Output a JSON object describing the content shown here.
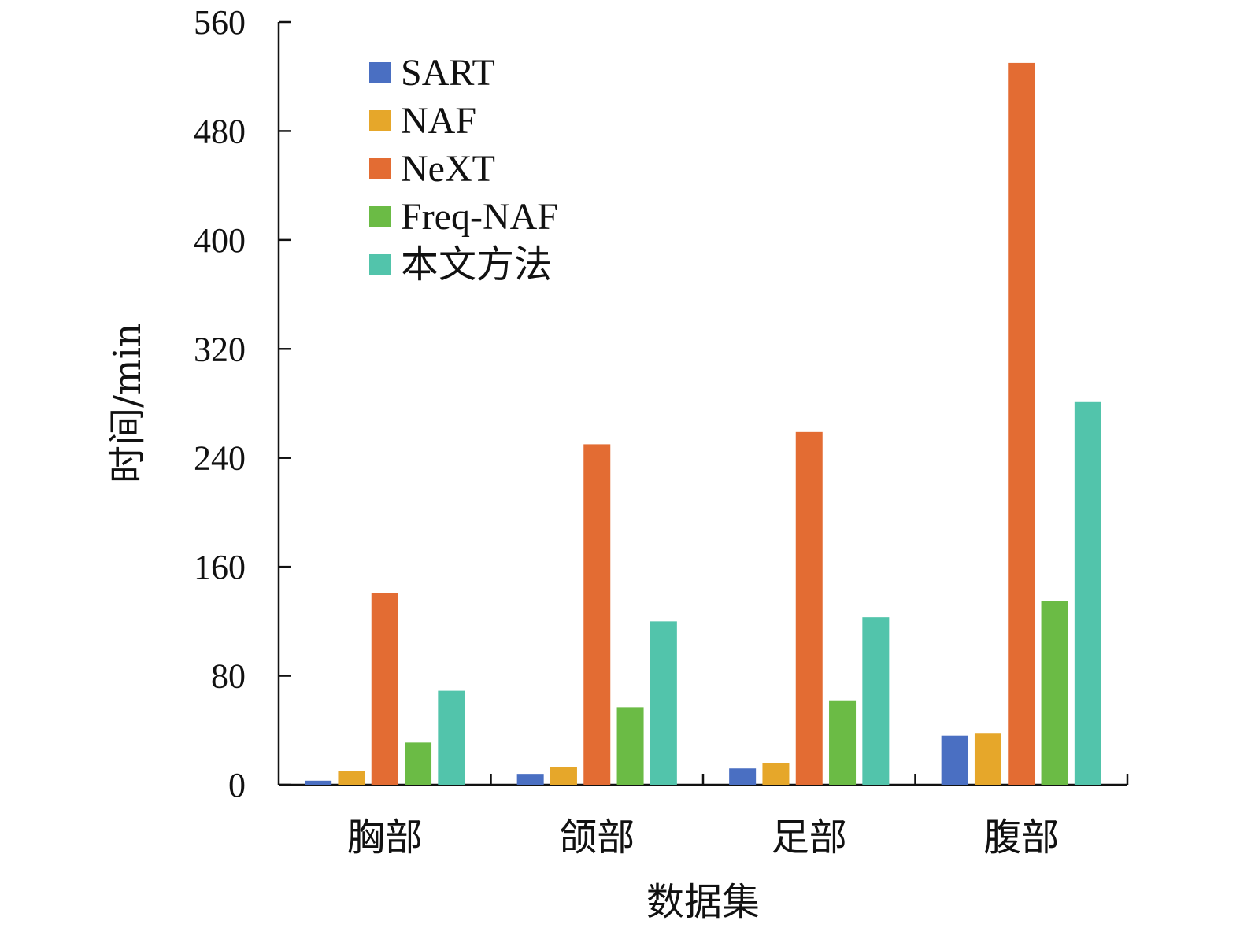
{
  "chart_data": {
    "type": "bar",
    "categories": [
      "胸部",
      "颌部",
      "足部",
      "腹部"
    ],
    "series": [
      {
        "name": "SART",
        "color": "#4a6fc2",
        "values": [
          3,
          8,
          12,
          36
        ]
      },
      {
        "name": "NAF",
        "color": "#e6a72a",
        "values": [
          10,
          13,
          16,
          38
        ]
      },
      {
        "name": "NeXT",
        "color": "#e36c33",
        "values": [
          141,
          250,
          259,
          530
        ]
      },
      {
        "name": "Freq-NAF",
        "color": "#6bbb45",
        "values": [
          31,
          57,
          62,
          135
        ]
      },
      {
        "name": "本文方法",
        "color": "#52c4ab",
        "values": [
          69,
          120,
          123,
          281
        ]
      }
    ],
    "xlabel": "数据集",
    "ylabel": "时间/min",
    "ylim": [
      0,
      560
    ],
    "yticks": [
      0,
      80,
      160,
      240,
      320,
      400,
      480,
      560
    ],
    "legend_position": "top-left",
    "grid": false
  }
}
